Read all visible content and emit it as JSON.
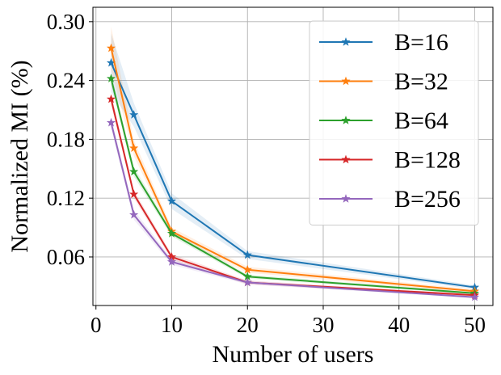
{
  "chart_data": {
    "type": "line",
    "title": "",
    "xlabel": "Number of users",
    "ylabel": "Normalized MI (%)",
    "x": [
      2,
      5,
      10,
      20,
      50
    ],
    "xlim": [
      -0.4,
      52.4
    ],
    "ylim": [
      0.0105,
      0.3147
    ],
    "xticks": [
      0,
      10,
      20,
      30,
      40,
      50
    ],
    "xtick_labels": [
      "0",
      "10",
      "20",
      "30",
      "40",
      "50"
    ],
    "yticks": [
      0.06,
      0.12,
      0.18,
      0.24,
      0.3
    ],
    "ytick_labels": [
      "0.06",
      "0.12",
      "0.18",
      "0.24",
      "0.30"
    ],
    "grid": true,
    "marker": "star",
    "legend_position": "top-right",
    "series": [
      {
        "name": "B=16",
        "color": "#1f77b4",
        "values": [
          0.258,
          0.205,
          0.117,
          0.062,
          0.029
        ],
        "band": [
          0.03,
          0.012,
          0.008,
          0.004,
          0.002
        ]
      },
      {
        "name": "B=32",
        "color": "#ff7f0e",
        "values": [
          0.273,
          0.171,
          0.086,
          0.047,
          0.025
        ],
        "band": [
          0.022,
          0.008,
          0.004,
          0.003,
          0.002
        ]
      },
      {
        "name": "B=64",
        "color": "#2ca02c",
        "values": [
          0.242,
          0.147,
          0.084,
          0.04,
          0.023
        ],
        "band": [
          0.006,
          0.005,
          0.003,
          0.002,
          0.001
        ]
      },
      {
        "name": "B=128",
        "color": "#d62728",
        "values": [
          0.221,
          0.124,
          0.06,
          0.034,
          0.021
        ],
        "band": [
          0.006,
          0.004,
          0.003,
          0.002,
          0.001
        ]
      },
      {
        "name": "B=256",
        "color": "#9467bd",
        "values": [
          0.197,
          0.103,
          0.055,
          0.034,
          0.019
        ],
        "band": [
          0.006,
          0.005,
          0.003,
          0.002,
          0.001
        ]
      }
    ]
  }
}
